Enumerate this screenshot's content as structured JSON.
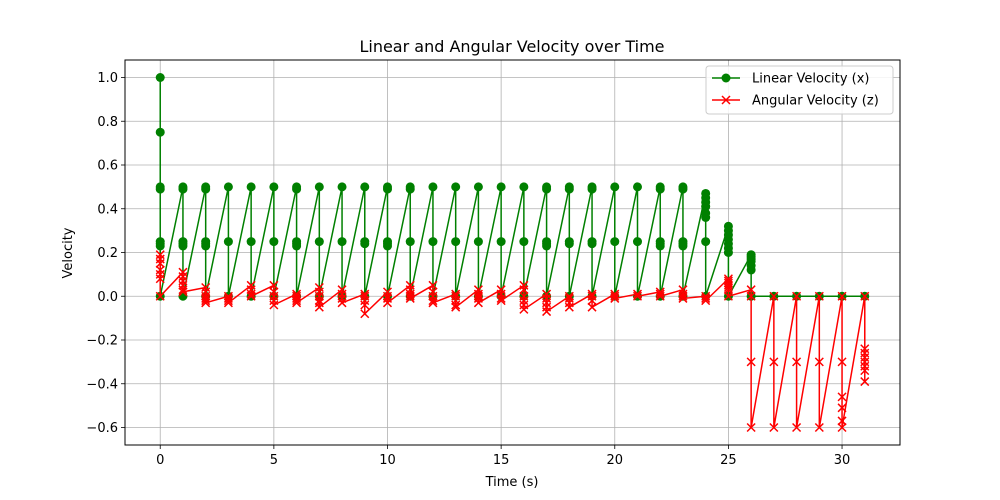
{
  "chart_data": {
    "type": "line",
    "title": "Linear and Angular Velocity over Time",
    "xlabel": "Time (s)",
    "ylabel": "Velocity",
    "xlim": [
      -1.55,
      32.55
    ],
    "ylim": [
      -0.68,
      1.08
    ],
    "xticks": [
      0,
      5,
      10,
      15,
      20,
      25,
      30
    ],
    "yticks": [
      -0.6,
      -0.4,
      -0.2,
      0.0,
      0.2,
      0.4,
      0.6,
      0.8,
      1.0
    ],
    "ytick_labels": [
      "−0.6",
      "−0.4",
      "−0.2",
      "0.0",
      "0.2",
      "0.4",
      "0.6",
      "0.8",
      "1.0"
    ],
    "grid": true,
    "legend_position": "top-right",
    "series": [
      {
        "name": "Linear Velocity (x)",
        "color": "#008000",
        "marker": "circle",
        "groups": [
          {
            "t": 0,
            "v": [
              1.0,
              0.75,
              0.5,
              0.49,
              0.25,
              0.24,
              0.23,
              0.0
            ]
          },
          {
            "t": 1,
            "v": [
              0.5,
              0.49,
              0.25,
              0.24,
              0.23,
              0.0
            ]
          },
          {
            "t": 2,
            "v": [
              0.5,
              0.49,
              0.25,
              0.24,
              0.23,
              0.0
            ]
          },
          {
            "t": 3,
            "v": [
              0.5,
              0.25,
              0.0
            ]
          },
          {
            "t": 4,
            "v": [
              0.5,
              0.25,
              0.0
            ]
          },
          {
            "t": 5,
            "v": [
              0.5,
              0.25,
              0.0
            ]
          },
          {
            "t": 6,
            "v": [
              0.5,
              0.49,
              0.25,
              0.24,
              0.23,
              0.0
            ]
          },
          {
            "t": 7,
            "v": [
              0.5,
              0.25,
              0.0
            ]
          },
          {
            "t": 8,
            "v": [
              0.5,
              0.25,
              0.0
            ]
          },
          {
            "t": 9,
            "v": [
              0.5,
              0.25,
              0.24,
              0.0
            ]
          },
          {
            "t": 10,
            "v": [
              0.5,
              0.49,
              0.25,
              0.24,
              0.23,
              0.0
            ]
          },
          {
            "t": 11,
            "v": [
              0.5,
              0.49,
              0.25,
              0.0
            ]
          },
          {
            "t": 12,
            "v": [
              0.5,
              0.25,
              0.0
            ]
          },
          {
            "t": 13,
            "v": [
              0.5,
              0.25,
              0.0
            ]
          },
          {
            "t": 14,
            "v": [
              0.5,
              0.25,
              0.0
            ]
          },
          {
            "t": 15,
            "v": [
              0.5,
              0.25,
              0.0
            ]
          },
          {
            "t": 16,
            "v": [
              0.5,
              0.25,
              0.0
            ]
          },
          {
            "t": 17,
            "v": [
              0.5,
              0.49,
              0.25,
              0.24,
              0.23,
              0.0
            ]
          },
          {
            "t": 18,
            "v": [
              0.5,
              0.49,
              0.25,
              0.24,
              0.0
            ]
          },
          {
            "t": 19,
            "v": [
              0.5,
              0.49,
              0.25,
              0.24,
              0.0
            ]
          },
          {
            "t": 20,
            "v": [
              0.5,
              0.25,
              0.0
            ]
          },
          {
            "t": 21,
            "v": [
              0.5,
              0.25,
              0.0
            ]
          },
          {
            "t": 22,
            "v": [
              0.5,
              0.49,
              0.25,
              0.24,
              0.23,
              0.0
            ]
          },
          {
            "t": 23,
            "v": [
              0.5,
              0.49,
              0.25,
              0.24,
              0.23,
              0.0
            ]
          },
          {
            "t": 24,
            "v": [
              0.47,
              0.45,
              0.43,
              0.41,
              0.38,
              0.36,
              0.25,
              0.0
            ]
          },
          {
            "t": 25,
            "v": [
              0.32,
              0.3,
              0.28,
              0.26,
              0.24,
              0.22,
              0.2,
              0.0
            ]
          },
          {
            "t": 26,
            "v": [
              0.19,
              0.18,
              0.17,
              0.16,
              0.14,
              0.12,
              0.0
            ]
          },
          {
            "t": 27,
            "v": [
              0.0
            ]
          },
          {
            "t": 28,
            "v": [
              0.0
            ]
          },
          {
            "t": 29,
            "v": [
              0.0
            ]
          },
          {
            "t": 30,
            "v": [
              0.0
            ]
          },
          {
            "t": 31,
            "v": [
              0.0
            ]
          }
        ]
      },
      {
        "name": "Angular Velocity (z)",
        "color": "#ff0000",
        "marker": "x",
        "groups": [
          {
            "t": 0,
            "v": [
              0.19,
              0.17,
              0.15,
              0.12,
              0.1,
              0.08,
              0.0
            ]
          },
          {
            "t": 1,
            "v": [
              0.11,
              0.09,
              0.07,
              0.05,
              0.03,
              0.02
            ]
          },
          {
            "t": 2,
            "v": [
              0.04,
              0.02,
              0.0,
              -0.01,
              -0.02,
              -0.03
            ]
          },
          {
            "t": 3,
            "v": [
              0.0,
              -0.01,
              -0.02,
              -0.03
            ]
          },
          {
            "t": 4,
            "v": [
              0.05,
              0.03,
              0.01,
              0.0
            ]
          },
          {
            "t": 5,
            "v": [
              0.05,
              0.02,
              0.0,
              -0.02,
              -0.04
            ]
          },
          {
            "t": 6,
            "v": [
              0.01,
              0.0,
              -0.01,
              -0.02,
              -0.03
            ]
          },
          {
            "t": 7,
            "v": [
              0.04,
              0.02,
              0.0,
              -0.02,
              -0.03,
              -0.05
            ]
          },
          {
            "t": 8,
            "v": [
              0.03,
              0.01,
              -0.01,
              -0.03
            ]
          },
          {
            "t": 9,
            "v": [
              0.01,
              0.0,
              -0.02,
              -0.04,
              -0.08
            ]
          },
          {
            "t": 10,
            "v": [
              0.02,
              0.0,
              -0.01,
              -0.03
            ]
          },
          {
            "t": 11,
            "v": [
              0.05,
              0.03,
              0.01,
              0.0,
              -0.01
            ]
          },
          {
            "t": 12,
            "v": [
              0.05,
              0.02,
              0.0,
              -0.02,
              -0.03
            ]
          },
          {
            "t": 13,
            "v": [
              0.01,
              0.0,
              -0.02,
              -0.04,
              -0.05
            ]
          },
          {
            "t": 14,
            "v": [
              0.03,
              0.01,
              0.0,
              -0.01,
              -0.03
            ]
          },
          {
            "t": 15,
            "v": [
              0.03,
              0.01,
              -0.01,
              -0.02
            ]
          },
          {
            "t": 16,
            "v": [
              0.05,
              0.03,
              0.0,
              -0.02,
              -0.04,
              -0.06
            ]
          },
          {
            "t": 17,
            "v": [
              0.01,
              -0.01,
              -0.03,
              -0.05,
              -0.07
            ]
          },
          {
            "t": 18,
            "v": [
              0.0,
              -0.01,
              -0.03,
              -0.05
            ]
          },
          {
            "t": 19,
            "v": [
              0.01,
              0.0,
              -0.02,
              -0.05
            ]
          },
          {
            "t": 20,
            "v": [
              0.01,
              0.0,
              -0.01
            ]
          },
          {
            "t": 21,
            "v": [
              0.01,
              0.0
            ]
          },
          {
            "t": 22,
            "v": [
              0.02,
              0.01,
              0.0
            ]
          },
          {
            "t": 23,
            "v": [
              0.03,
              0.01,
              0.0,
              -0.01
            ]
          },
          {
            "t": 24,
            "v": [
              0.0,
              -0.01,
              -0.02
            ]
          },
          {
            "t": 25,
            "v": [
              0.08,
              0.07,
              0.06,
              0.05,
              0.04,
              0.03,
              0.0
            ]
          },
          {
            "t": 26,
            "v": [
              0.03,
              0.0,
              -0.3,
              -0.6
            ]
          },
          {
            "t": 27,
            "v": [
              0.0,
              -0.3,
              -0.6
            ]
          },
          {
            "t": 28,
            "v": [
              0.0,
              -0.3,
              -0.6
            ]
          },
          {
            "t": 29,
            "v": [
              0.0,
              -0.3,
              -0.6
            ]
          },
          {
            "t": 30,
            "v": [
              0.0,
              -0.3,
              -0.46,
              -0.51,
              -0.57,
              -0.6
            ]
          },
          {
            "t": 31,
            "v": [
              0.0,
              -0.24,
              -0.26,
              -0.28,
              -0.3,
              -0.32,
              -0.34,
              -0.39
            ]
          }
        ]
      }
    ]
  }
}
